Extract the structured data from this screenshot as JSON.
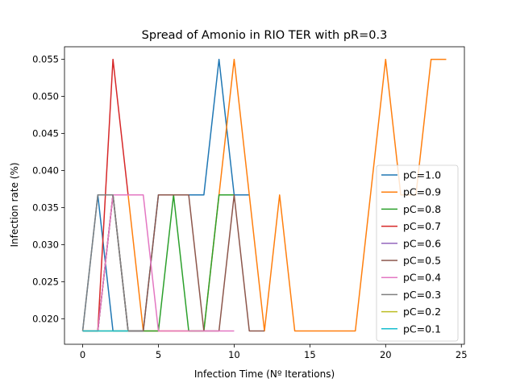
{
  "chart_data": {
    "type": "line",
    "title": "Spread of Amonio in RIO TER with pR=0.3",
    "xlabel": "Infection Time (Nº Iterations)",
    "ylabel": "Infection rate (%)",
    "xlim": [
      -1.2,
      25.2
    ],
    "ylim": [
      0.01655,
      0.0567
    ],
    "xticks": [
      0,
      5,
      10,
      15,
      20,
      25
    ],
    "yticks": [
      0.02,
      0.025,
      0.03,
      0.035,
      0.04,
      0.045,
      0.05,
      0.055
    ],
    "ytick_labels": [
      "0.020",
      "0.025",
      "0.030",
      "0.035",
      "0.040",
      "0.045",
      "0.050",
      "0.055"
    ],
    "grid": false,
    "legend_position": "lower-right",
    "series": [
      {
        "name": "pC=1.0",
        "color": "#1f77b4",
        "x": [
          0,
          1,
          2,
          3,
          4,
          5,
          6,
          7,
          8,
          9,
          10,
          11
        ],
        "y": [
          0.01835,
          0.0367,
          0.01835,
          0.01835,
          0.01835,
          0.0367,
          0.0367,
          0.0367,
          0.0367,
          0.055,
          0.0367,
          0.0367
        ]
      },
      {
        "name": "pC=0.9",
        "color": "#ff7f0e",
        "x": [
          0,
          1,
          2,
          3,
          4,
          5,
          6,
          7,
          8,
          9,
          10,
          11,
          12,
          13,
          14,
          15,
          16,
          17,
          18,
          19,
          20,
          21,
          22,
          23,
          24
        ],
        "y": [
          0.01835,
          0.01835,
          0.0367,
          0.0367,
          0.01835,
          0.01835,
          0.01835,
          0.01835,
          0.01835,
          0.0367,
          0.055,
          0.0367,
          0.01835,
          0.0367,
          0.01835,
          0.01835,
          0.01835,
          0.01835,
          0.01835,
          0.0367,
          0.055,
          0.0367,
          0.0367,
          0.055,
          0.055
        ]
      },
      {
        "name": "pC=0.8",
        "color": "#2ca02c",
        "x": [
          0,
          1,
          2,
          3,
          4,
          5,
          6,
          7,
          8,
          9,
          10
        ],
        "y": [
          0.01835,
          0.01835,
          0.0367,
          0.01835,
          0.01835,
          0.01835,
          0.0367,
          0.01835,
          0.01835,
          0.0367,
          0.0367
        ]
      },
      {
        "name": "pC=0.7",
        "color": "#d62728",
        "x": [
          0,
          1,
          2,
          3,
          4
        ],
        "y": [
          0.01835,
          0.01835,
          0.055,
          0.0367,
          0.0367
        ]
      },
      {
        "name": "pC=0.6",
        "color": "#9467bd",
        "x": [
          0,
          1,
          2,
          3,
          4
        ],
        "y": [
          0.01835,
          0.01835,
          0.0367,
          0.01835,
          0.01835
        ]
      },
      {
        "name": "pC=0.5",
        "color": "#8c564b",
        "x": [
          0,
          1,
          2,
          3,
          4,
          5,
          6,
          7,
          8,
          9,
          10,
          11,
          12
        ],
        "y": [
          0.01835,
          0.01835,
          0.0367,
          0.01835,
          0.01835,
          0.0367,
          0.0367,
          0.0367,
          0.01835,
          0.01835,
          0.0367,
          0.01835,
          0.01835
        ]
      },
      {
        "name": "pC=0.4",
        "color": "#e377c2",
        "x": [
          0,
          1,
          2,
          3,
          4,
          5,
          6,
          7,
          8,
          9,
          10
        ],
        "y": [
          0.01835,
          0.01835,
          0.0367,
          0.0367,
          0.0367,
          0.01835,
          0.01835,
          0.01835,
          0.01835,
          0.01835,
          0.01835
        ]
      },
      {
        "name": "pC=0.3",
        "color": "#7f7f7f",
        "x": [
          0,
          1,
          2,
          3,
          4
        ],
        "y": [
          0.01835,
          0.0367,
          0.0367,
          0.01835,
          0.01835
        ]
      },
      {
        "name": "pC=0.2",
        "color": "#bcbd22",
        "x": [
          0,
          1,
          2,
          3
        ],
        "y": [
          0.01835,
          0.01835,
          0.01835,
          0.01835
        ]
      },
      {
        "name": "pC=0.1",
        "color": "#17becf",
        "x": [
          0,
          1,
          2,
          3
        ],
        "y": [
          0.01835,
          0.01835,
          0.01835,
          0.01835
        ]
      }
    ]
  }
}
